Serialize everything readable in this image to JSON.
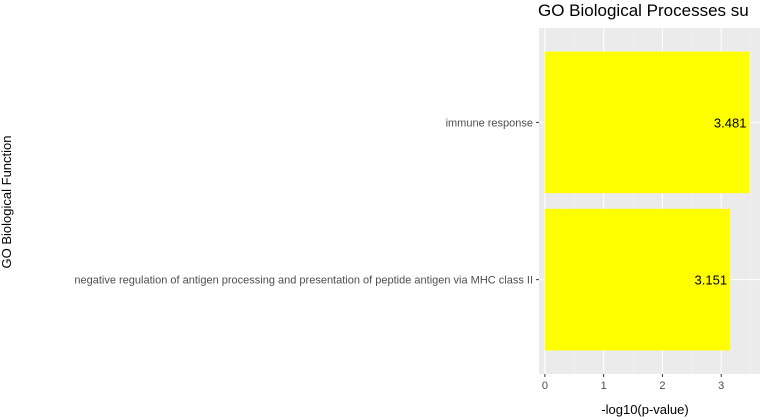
{
  "chart_data": {
    "type": "bar",
    "orientation": "horizontal",
    "title": "GO Biological Processes su",
    "xlabel": "-log10(p-value)",
    "ylabel": "GO Biological Function",
    "categories": [
      "immune response",
      "negative regulation of antigen processing and presentation of peptide antigen via MHC class II"
    ],
    "values": [
      3.481,
      3.151
    ],
    "data_labels": [
      "3.481",
      "3.151"
    ],
    "xlim": [
      -0.1,
      3.66
    ],
    "xticks": [
      0,
      1,
      2,
      3
    ],
    "xtick_labels": [
      "0",
      "1",
      "2",
      "3"
    ],
    "grid": true,
    "colors": {
      "bar": "#ffff00",
      "panel": "#ebebeb",
      "grid_major": "#ffffff",
      "grid_minor": "#f5f5f5",
      "tick": "#333333"
    }
  }
}
